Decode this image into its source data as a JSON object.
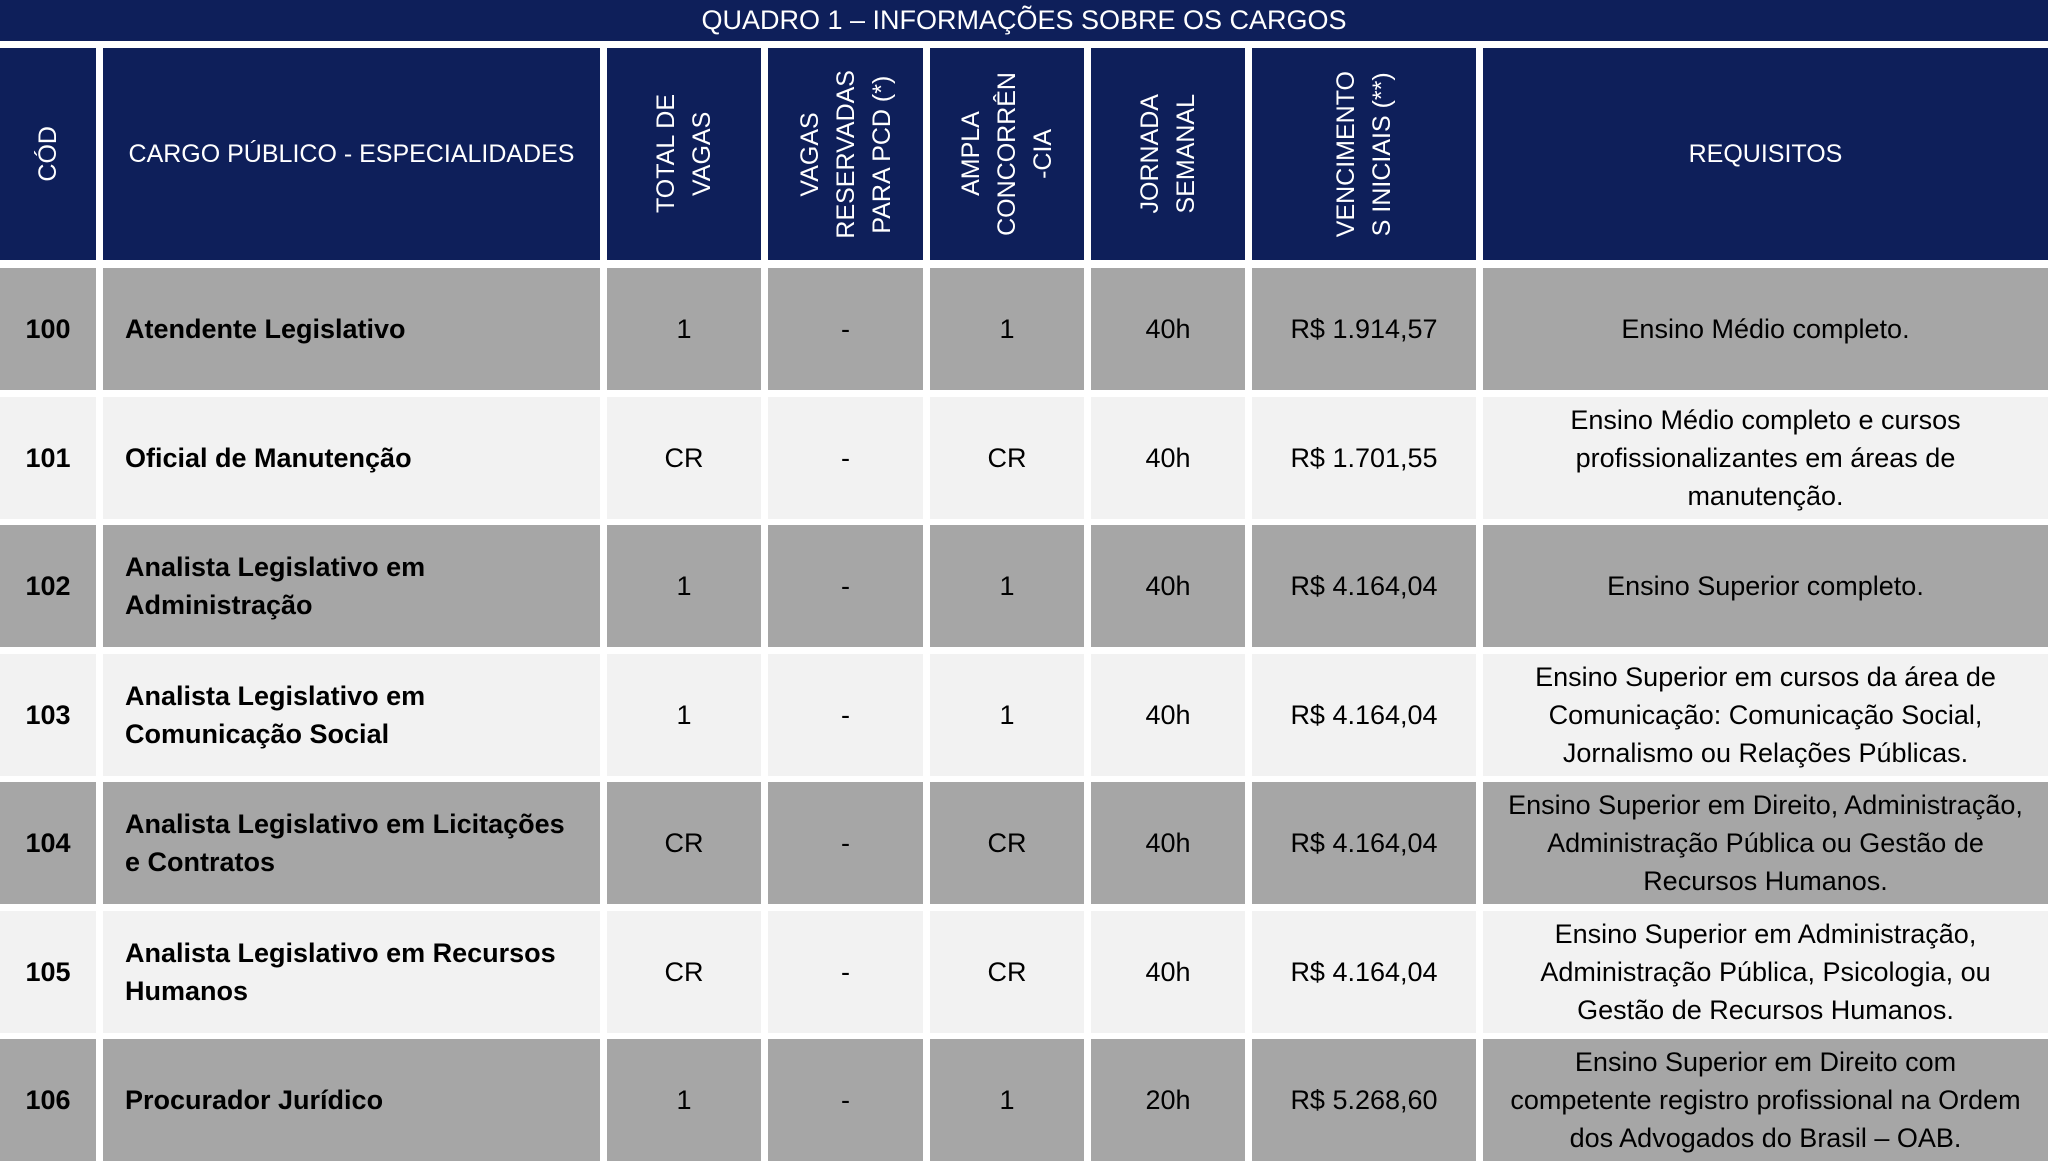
{
  "title": "QUADRO 1 – INFORMAÇÕES SOBRE OS CARGOS",
  "colors": {
    "header_bg": "#0e1f5a",
    "row_dark": "#a6a6a6",
    "row_light": "#f2f2f2"
  },
  "headers": {
    "cod": "CÓD",
    "cargo": "CARGO PÚBLICO - ESPECIALIDADES",
    "total": "TOTAL DE\nVAGAS",
    "pcd": "VAGAS\nRESERVADAS\nPARA PCD (*)",
    "ampla": "AMPLA\nCONCORRÊN\n-CIA",
    "jornada": "JORNADA\nSEMANAL",
    "venc": "VENCIMENTO\nS INICIAIS (**)",
    "req": "REQUISITOS"
  },
  "rows": [
    {
      "cod": "100",
      "cargo": "Atendente Legislativo",
      "total": "1",
      "pcd": "-",
      "ampla": "1",
      "jornada": "40h",
      "venc": "R$ 1.914,57",
      "req": "Ensino Médio completo."
    },
    {
      "cod": "101",
      "cargo": "Oficial de Manutenção",
      "total": "CR",
      "pcd": "-",
      "ampla": "CR",
      "jornada": "40h",
      "venc": "R$ 1.701,55",
      "req": "Ensino Médio completo e cursos\nprofissionalizantes em áreas de\nmanutenção."
    },
    {
      "cod": "102",
      "cargo": "Analista Legislativo em\nAdministração",
      "total": "1",
      "pcd": "-",
      "ampla": "1",
      "jornada": "40h",
      "venc": "R$ 4.164,04",
      "req": "Ensino Superior completo."
    },
    {
      "cod": "103",
      "cargo": "Analista Legislativo em\nComunicação Social",
      "total": "1",
      "pcd": "-",
      "ampla": "1",
      "jornada": "40h",
      "venc": "R$ 4.164,04",
      "req": "Ensino Superior em cursos da área de\nComunicação: Comunicação Social,\nJornalismo ou Relações Públicas."
    },
    {
      "cod": "104",
      "cargo": "Analista Legislativo em Licitações\ne Contratos",
      "total": "CR",
      "pcd": "-",
      "ampla": "CR",
      "jornada": "40h",
      "venc": "R$ 4.164,04",
      "req": "Ensino Superior em Direito, Administração,\nAdministração Pública ou Gestão de\nRecursos Humanos."
    },
    {
      "cod": "105",
      "cargo": "Analista Legislativo em Recursos\nHumanos",
      "total": "CR",
      "pcd": "-",
      "ampla": "CR",
      "jornada": "40h",
      "venc": "R$ 4.164,04",
      "req": "Ensino Superior em Administração,\nAdministração Pública, Psicologia, ou\nGestão de Recursos Humanos."
    },
    {
      "cod": "106",
      "cargo": "Procurador Jurídico",
      "total": "1",
      "pcd": "-",
      "ampla": "1",
      "jornada": "20h",
      "venc": "R$ 5.268,60",
      "req": "Ensino Superior em Direito com\ncompetente registro profissional na Ordem\ndos Advogados do Brasil – OAB."
    }
  ]
}
